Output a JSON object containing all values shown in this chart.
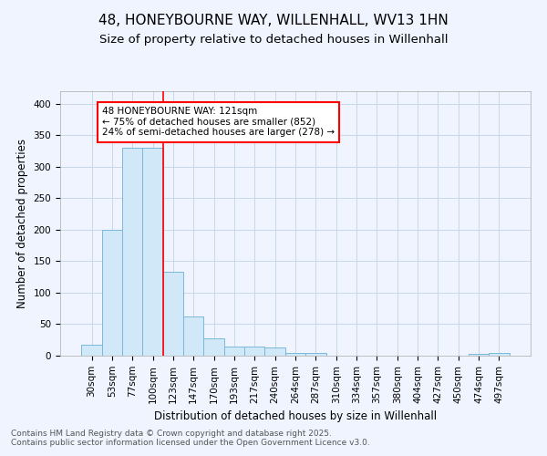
{
  "title": "48, HONEYBOURNE WAY, WILLENHALL, WV13 1HN",
  "subtitle": "Size of property relative to detached houses in Willenhall",
  "xlabel": "Distribution of detached houses by size in Willenhall",
  "ylabel": "Number of detached properties",
  "categories": [
    "30sqm",
    "53sqm",
    "77sqm",
    "100sqm",
    "123sqm",
    "147sqm",
    "170sqm",
    "193sqm",
    "217sqm",
    "240sqm",
    "264sqm",
    "287sqm",
    "310sqm",
    "334sqm",
    "357sqm",
    "380sqm",
    "404sqm",
    "427sqm",
    "450sqm",
    "474sqm",
    "497sqm"
  ],
  "values": [
    18,
    200,
    330,
    330,
    133,
    62,
    27,
    15,
    15,
    13,
    5,
    4,
    0,
    0,
    0,
    0,
    0,
    0,
    0,
    3,
    5
  ],
  "bar_color": "#d0e8f8",
  "bar_edge_color": "#7ab8d8",
  "red_line_index": 4,
  "annotation_text": "48 HONEYBOURNE WAY: 121sqm\n← 75% of detached houses are smaller (852)\n24% of semi-detached houses are larger (278) →",
  "annotation_box_color": "white",
  "annotation_box_edge_color": "red",
  "ylim": [
    0,
    420
  ],
  "yticks": [
    0,
    50,
    100,
    150,
    200,
    250,
    300,
    350,
    400
  ],
  "footer_text": "Contains HM Land Registry data © Crown copyright and database right 2025.\nContains public sector information licensed under the Open Government Licence v3.0.",
  "background_color": "#f0f4ff",
  "grid_color": "#c8d8e8",
  "title_fontsize": 11,
  "subtitle_fontsize": 9.5,
  "axis_label_fontsize": 8.5,
  "tick_fontsize": 7.5,
  "annotation_fontsize": 7.5,
  "footer_fontsize": 6.5
}
